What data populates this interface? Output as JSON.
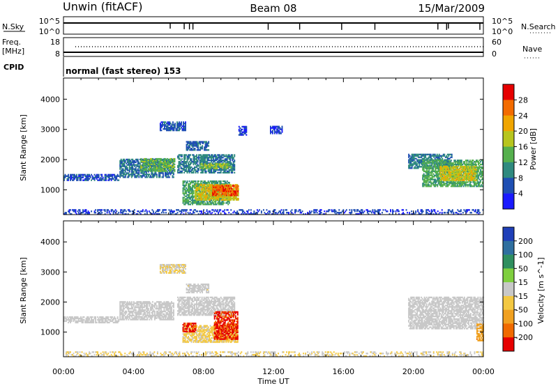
{
  "header": {
    "site": "Unwin (fitACF)",
    "beam": "Beam 08",
    "date": "15/Mar/2009"
  },
  "noise_panel": {
    "left_label": "N.Sky",
    "left_ticks": [
      "10^5",
      "10^0"
    ],
    "right_label": "N.Search",
    "right_ticks": [
      "10^5",
      "10^0"
    ]
  },
  "freq_panel": {
    "left_label_line1": "Freq.",
    "left_label_line2": "[MHz]",
    "left_ticks": [
      "18",
      "8"
    ],
    "right_label": "Nave",
    "right_ticks": [
      "60",
      "0"
    ]
  },
  "cpid_panel": {
    "label": "CPID",
    "text": "normal (fast stereo) 153"
  },
  "power_panel": {
    "ylabel": "Slant Range [km]",
    "yticks": [
      "1000",
      "2000",
      "3000",
      "4000"
    ],
    "colorbar_label": "Power [dB]",
    "colorbar_ticks": [
      "4",
      "8",
      "12",
      "16",
      "20",
      "24",
      "28"
    ],
    "colors": [
      "#1a1aff",
      "#1f4fb3",
      "#2f8a7f",
      "#55b04d",
      "#b7c51e",
      "#f0a500",
      "#f36b00",
      "#e60000"
    ]
  },
  "velocity_panel": {
    "ylabel": "Slant Range [km]",
    "yticks": [
      "1000",
      "2000",
      "3000",
      "4000"
    ],
    "colorbar_label": "Velocity [m s^-1]",
    "colorbar_ticks": [
      "200",
      "100",
      "50",
      "15",
      "-15",
      "-50",
      "-100",
      "-200"
    ],
    "colors": [
      "#1f3fb8",
      "#2f6f9f",
      "#2f8f5f",
      "#7fcf3f",
      "#c8c8c8",
      "#f3c842",
      "#f0a020",
      "#f06a00",
      "#e60000"
    ]
  },
  "xaxis": {
    "ticks": [
      "00:00",
      "04:00",
      "08:00",
      "12:00",
      "16:00",
      "20:00",
      "00:00"
    ],
    "label": "Time UT"
  },
  "chart_data": {
    "type": "heatmap",
    "title": "Unwin (fitACF) Beam 08 15/Mar/2009",
    "xlabel": "Time UT",
    "ylabel": "Slant Range [km]",
    "xlim": [
      0,
      24
    ],
    "ylim": [
      180,
      4700
    ],
    "grid": false,
    "series": [
      {
        "name": "Power [dB]",
        "clim": [
          0,
          32
        ],
        "regions": [
          {
            "t0": 0.0,
            "t1": 3.2,
            "r0": 1300,
            "r1": 1530,
            "value": 6
          },
          {
            "t0": 3.2,
            "t1": 6.3,
            "r0": 1400,
            "r1": 2050,
            "value": 8
          },
          {
            "t0": 4.4,
            "t1": 6.4,
            "r0": 1600,
            "r1": 2050,
            "value": 14
          },
          {
            "t0": 6.5,
            "t1": 9.8,
            "r0": 1550,
            "r1": 2200,
            "value": 9
          },
          {
            "t0": 7.8,
            "t1": 9.6,
            "r0": 1700,
            "r1": 1900,
            "value": 16
          },
          {
            "t0": 7.0,
            "t1": 8.3,
            "r0": 2300,
            "r1": 2600,
            "value": 7
          },
          {
            "t0": 5.5,
            "t1": 7.0,
            "r0": 2950,
            "r1": 3250,
            "value": 6
          },
          {
            "t0": 10.0,
            "t1": 10.5,
            "r0": 2800,
            "r1": 3100,
            "value": 5
          },
          {
            "t0": 11.8,
            "t1": 12.5,
            "r0": 2850,
            "r1": 3100,
            "value": 5
          },
          {
            "t0": 6.8,
            "t1": 9.5,
            "r0": 500,
            "r1": 1300,
            "value": 12
          },
          {
            "t0": 7.5,
            "t1": 10.0,
            "r0": 650,
            "r1": 1200,
            "value": 19
          },
          {
            "t0": 8.5,
            "t1": 10.0,
            "r0": 800,
            "r1": 1150,
            "value": 27
          },
          {
            "t0": 19.7,
            "t1": 22.2,
            "r0": 1700,
            "r1": 2200,
            "value": 9
          },
          {
            "t0": 20.5,
            "t1": 24.0,
            "r0": 1100,
            "r1": 2000,
            "value": 13
          },
          {
            "t0": 21.5,
            "t1": 23.6,
            "r0": 1300,
            "r1": 1800,
            "value": 19
          },
          {
            "t0": 0.0,
            "t1": 24.0,
            "r0": 180,
            "r1": 350,
            "value": 5
          }
        ]
      },
      {
        "name": "Velocity [m s^-1]",
        "clim": [
          -250,
          250
        ],
        "regions": [
          {
            "t0": 0.0,
            "t1": 3.2,
            "r0": 1300,
            "r1": 1530,
            "value": 0
          },
          {
            "t0": 3.2,
            "t1": 6.3,
            "r0": 1400,
            "r1": 2050,
            "value": 0
          },
          {
            "t0": 6.5,
            "t1": 9.8,
            "r0": 1550,
            "r1": 2200,
            "value": 0
          },
          {
            "t0": 5.5,
            "t1": 7.0,
            "r0": 2950,
            "r1": 3250,
            "value": -30
          },
          {
            "t0": 7.0,
            "t1": 8.3,
            "r0": 2300,
            "r1": 2600,
            "value": -10
          },
          {
            "t0": 6.8,
            "t1": 10.0,
            "r0": 650,
            "r1": 1250,
            "value": -40
          },
          {
            "t0": 8.6,
            "t1": 10.0,
            "r0": 750,
            "r1": 1700,
            "value": -200
          },
          {
            "t0": 6.8,
            "t1": 7.6,
            "r0": 1000,
            "r1": 1300,
            "value": -200
          },
          {
            "t0": 19.7,
            "t1": 24.0,
            "r0": 1100,
            "r1": 2200,
            "value": 0
          },
          {
            "t0": 23.6,
            "t1": 24.0,
            "r0": 700,
            "r1": 1300,
            "value": -120
          },
          {
            "t0": 0.0,
            "t1": 24.0,
            "r0": 180,
            "r1": 350,
            "value": -25
          }
        ]
      }
    ]
  }
}
